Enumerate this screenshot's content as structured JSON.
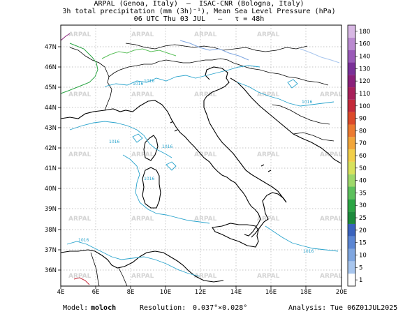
{
  "header": {
    "line1": "ARPAL (Genoa, Italy)  –  ISAC-CNR (Bologna, Italy)",
    "line2": "3h total precipitation (mm (3h)⁻¹), Mean Sea Level Pressure (hPa)",
    "line3": "06 UTC Thu 03 JUL   –   τ = 48h"
  },
  "footer": {
    "model_label": "Model:",
    "model_value": "moloch",
    "resolution_label": "Resolution:",
    "resolution_value": "0.037°×0.028°",
    "analysis_label": "Analysis:",
    "analysis_value": "Tue 06Z01JUL2025"
  },
  "map": {
    "lon_labels": [
      "4E",
      "6E",
      "8E",
      "10E",
      "12E",
      "14E",
      "16E",
      "18E",
      "20E"
    ],
    "lat_labels": [
      "47N",
      "46N",
      "45N",
      "44N",
      "43N",
      "42N",
      "41N",
      "40N",
      "39N",
      "38N",
      "37N",
      "36N"
    ],
    "isobar_labels": [
      "1016",
      "1016",
      "1016",
      "1016",
      "1016",
      "1016",
      "1016",
      "1016"
    ],
    "watermark": "ARPAL"
  },
  "colorbar": {
    "values": [
      "1",
      "5",
      "10",
      "15",
      "20",
      "25",
      "30",
      "35",
      "40",
      "50",
      "60",
      "70",
      "80",
      "90",
      "100",
      "110",
      "120",
      "130",
      "140",
      "160",
      "180"
    ],
    "colors": [
      "#ffffff",
      "#a8c6ee",
      "#7fa6e0",
      "#5b86d4",
      "#3a63be",
      "#1c8a3c",
      "#2ba544",
      "#5cc05c",
      "#9ed86a",
      "#d8e25c",
      "#f2cf4a",
      "#f2a63a",
      "#ec7a30",
      "#dc4a2a",
      "#c42a3a",
      "#a8205a",
      "#8a207a",
      "#7a3098",
      "#9a5ab8",
      "#ba8ad0",
      "#d8b8e4"
    ]
  }
}
